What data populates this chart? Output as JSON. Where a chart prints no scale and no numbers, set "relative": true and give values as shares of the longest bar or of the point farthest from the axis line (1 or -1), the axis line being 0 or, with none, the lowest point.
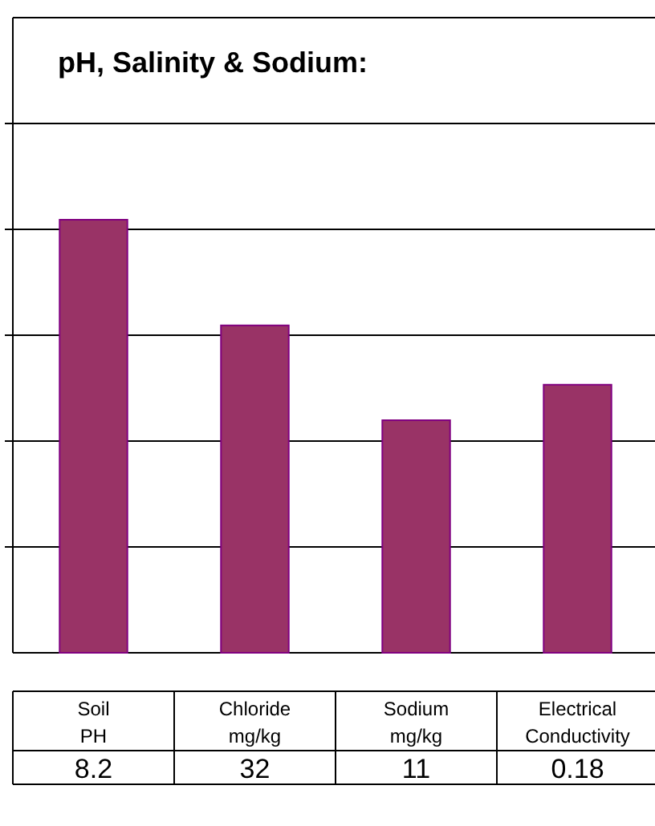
{
  "chart_data": {
    "type": "bar",
    "title": "pH, Salinity & Sodium:",
    "relative": true,
    "grid": true,
    "categories": [
      "Soil PH",
      "Chloride mg/kg",
      "Sodium mg/kg",
      "Electrical Conductivity"
    ],
    "values": [
      1,
      0.756,
      0.537,
      0.619
    ],
    "color": "#993366",
    "annotations": [
      "8.2",
      "32",
      "11",
      "0.18"
    ]
  }
}
